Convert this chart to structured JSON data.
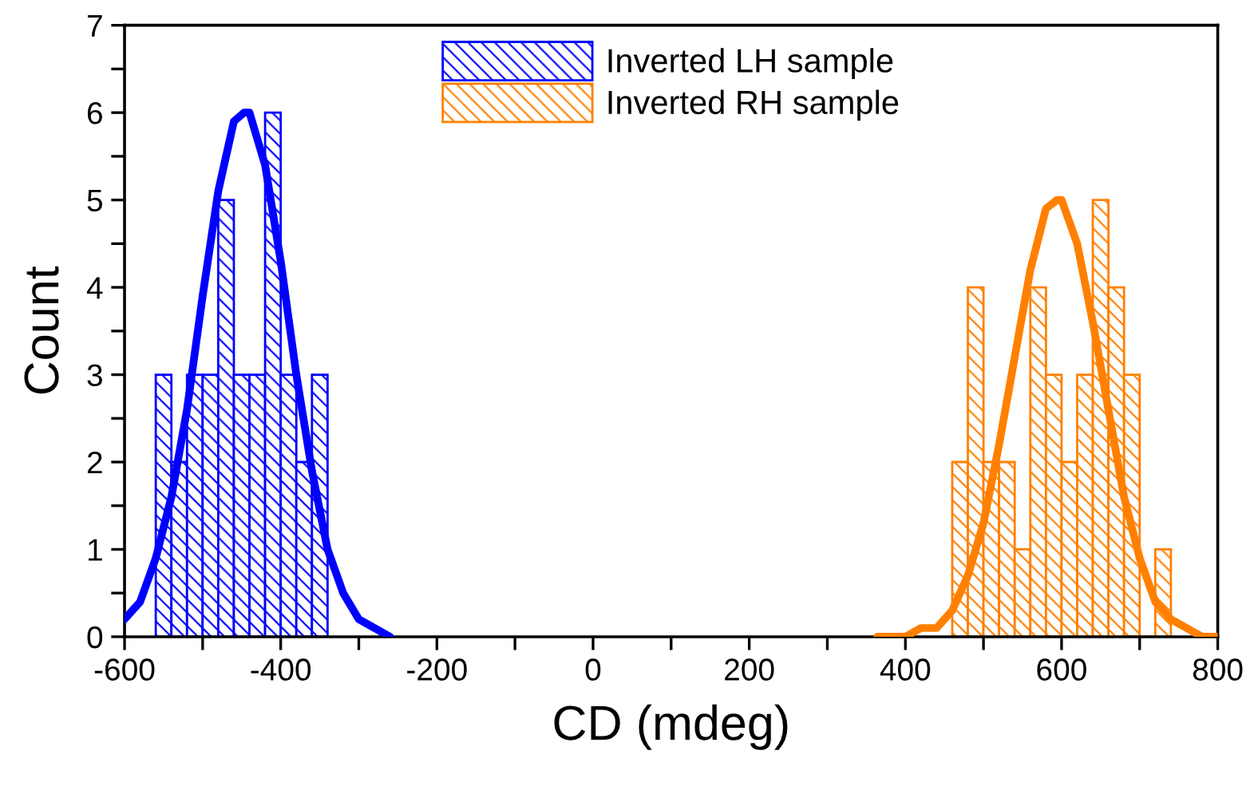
{
  "chart_data": {
    "type": "histogram",
    "xlabel": "CD (mdeg)",
    "ylabel": "Count",
    "xlim": [
      -600,
      800
    ],
    "ylim": [
      0,
      7
    ],
    "xticks": [
      -600,
      {
        "value": -500,
        "label": null
      },
      -400,
      {
        "value": -300,
        "label": null
      },
      -200,
      {
        "value": -100,
        "label": null
      },
      0,
      {
        "value": 100,
        "label": null
      },
      200,
      {
        "value": 300,
        "label": null
      },
      400,
      {
        "value": 500,
        "label": null
      },
      600,
      {
        "value": 700,
        "label": null
      },
      800
    ],
    "yticks": [
      0,
      {
        "value": 0.5,
        "label": null
      },
      1,
      {
        "value": 1.5,
        "label": null
      },
      2,
      {
        "value": 2.5,
        "label": null
      },
      3,
      {
        "value": 3.5,
        "label": null
      },
      4,
      {
        "value": 4.5,
        "label": null
      },
      5,
      {
        "value": 5.5,
        "label": null
      },
      6,
      {
        "value": 6.5,
        "label": null
      },
      7
    ],
    "grid": false,
    "legend": "top",
    "series": [
      {
        "name": "Inverted LH sample",
        "color": "#0000ff",
        "bins": [
          -560,
          -540,
          -520,
          -500,
          -480,
          -460,
          -440,
          -420,
          -400,
          -380,
          -360,
          -340
        ],
        "values": [
          3,
          2,
          3,
          3,
          5,
          3,
          3,
          6,
          3,
          2,
          3
        ]
      },
      {
        "name": "Inverted RH sample",
        "color": "#ff8000",
        "bins": [
          460,
          480,
          500,
          520,
          540,
          560,
          580,
          600,
          620,
          640,
          660,
          680,
          700,
          720,
          740
        ],
        "values": [
          2,
          4,
          2,
          2,
          1,
          4,
          3,
          2,
          3,
          5,
          4,
          3,
          0,
          1
        ]
      },
      {
        "type": "line",
        "color": "#0000ff",
        "x": [
          -600,
          -580,
          -560,
          -540,
          -520,
          -500,
          -480,
          -460,
          -447,
          -440,
          -420,
          -400,
          -380,
          -360,
          -340,
          -320,
          -300,
          -280,
          -260
        ],
        "values": [
          0.2,
          0.4,
          0.9,
          1.6,
          2.6,
          3.9,
          5.1,
          5.9,
          6.0,
          6.0,
          5.4,
          4.3,
          3.0,
          1.9,
          1.0,
          0.5,
          0.2,
          0.1,
          0.0
        ]
      },
      {
        "type": "line",
        "color": "#ff8000",
        "x": [
          364,
          380,
          400,
          420,
          440,
          460,
          480,
          500,
          520,
          540,
          560,
          580,
          594,
          600,
          620,
          640,
          660,
          680,
          700,
          720,
          740,
          760,
          780,
          800
        ],
        "values": [
          0.0,
          0.0,
          0.0,
          0.1,
          0.1,
          0.3,
          0.7,
          1.3,
          2.2,
          3.2,
          4.2,
          4.9,
          5.0,
          5.0,
          4.5,
          3.6,
          2.6,
          1.6,
          0.9,
          0.4,
          0.2,
          0.1,
          0.0,
          0.0
        ]
      }
    ]
  }
}
